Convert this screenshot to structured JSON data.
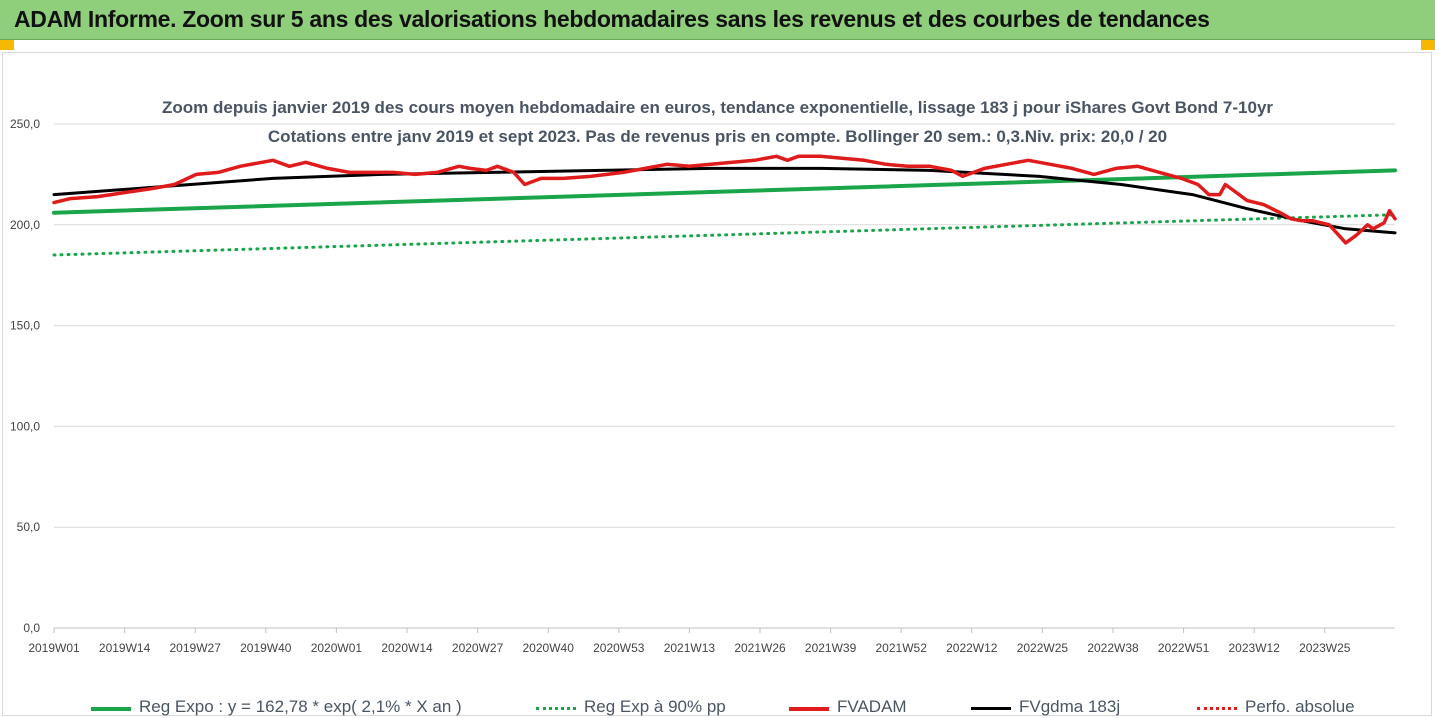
{
  "banner": {
    "title": "ADAM Informe. Zoom sur 5 ans des valorisations hebdomadaires sans les revenus et des courbes de tendances"
  },
  "chart_data": {
    "type": "line",
    "title": "Zoom depuis janvier 2019 des cours moyen hebdomadaire en euros, tendance exponentielle, lissage 183 j pour iShares Govt Bond 7-10yr",
    "subtitle": "Cotations entre janv 2019 et sept 2023. Pas de revenus pris en compte. Bollinger 20 sem.: 0,3.Niv. prix: 20,0 / 20",
    "ylim": [
      0,
      250
    ],
    "y_ticks": [
      "0,0",
      "50,0",
      "100,0",
      "150,0",
      "200,0",
      "250,0"
    ],
    "x_ticks": [
      "2019W01",
      "2019W14",
      "2019W27",
      "2019W40",
      "2020W01",
      "2020W14",
      "2020W27",
      "2020W40",
      "2020W53",
      "2021W13",
      "2021W26",
      "2021W39",
      "2021W52",
      "2022W12",
      "2022W25",
      "2022W38",
      "2022W51",
      "2023W12",
      "2023W25"
    ],
    "grid": "horizontal",
    "legend_position": "bottom",
    "series": [
      {
        "name": "Reg  Expo : y = 162,78 * exp( 2,1% *  X  an )",
        "style": "solid",
        "color": "#1aa54a",
        "points": [
          [
            0,
            206
          ],
          [
            245,
            227
          ]
        ]
      },
      {
        "name": "Reg  Exp à 90% pp",
        "style": "dotted",
        "color": "#1aa54a",
        "points": [
          [
            0,
            185
          ],
          [
            245,
            205
          ]
        ]
      },
      {
        "name": "FVADAM",
        "style": "solid",
        "color": "#e01b1b",
        "points": [
          [
            0,
            211
          ],
          [
            3,
            213
          ],
          [
            8,
            214
          ],
          [
            13,
            216
          ],
          [
            18,
            218
          ],
          [
            22,
            220
          ],
          [
            26,
            225
          ],
          [
            30,
            226
          ],
          [
            34,
            229
          ],
          [
            38,
            231
          ],
          [
            40,
            232
          ],
          [
            43,
            229
          ],
          [
            46,
            231
          ],
          [
            50,
            228
          ],
          [
            54,
            226
          ],
          [
            58,
            226
          ],
          [
            62,
            226
          ],
          [
            66,
            225
          ],
          [
            70,
            226
          ],
          [
            74,
            229
          ],
          [
            76,
            228
          ],
          [
            79,
            227
          ],
          [
            81,
            229
          ],
          [
            84,
            226
          ],
          [
            86,
            220
          ],
          [
            89,
            223
          ],
          [
            93,
            223
          ],
          [
            98,
            224
          ],
          [
            104,
            226
          ],
          [
            108,
            228
          ],
          [
            112,
            230
          ],
          [
            116,
            229
          ],
          [
            120,
            230
          ],
          [
            124,
            231
          ],
          [
            128,
            232
          ],
          [
            132,
            234
          ],
          [
            134,
            232
          ],
          [
            136,
            234
          ],
          [
            140,
            234
          ],
          [
            144,
            233
          ],
          [
            148,
            232
          ],
          [
            152,
            230
          ],
          [
            156,
            229
          ],
          [
            160,
            229
          ],
          [
            164,
            227
          ],
          [
            166,
            224
          ],
          [
            170,
            228
          ],
          [
            174,
            230
          ],
          [
            178,
            232
          ],
          [
            182,
            230
          ],
          [
            186,
            228
          ],
          [
            190,
            225
          ],
          [
            194,
            228
          ],
          [
            198,
            229
          ],
          [
            202,
            226
          ],
          [
            206,
            223
          ],
          [
            209,
            220
          ],
          [
            211,
            215
          ],
          [
            213,
            215
          ],
          [
            214,
            220
          ],
          [
            216,
            216
          ],
          [
            218,
            212
          ],
          [
            221,
            210
          ],
          [
            224,
            206
          ],
          [
            226,
            203
          ],
          [
            228,
            202
          ],
          [
            230,
            202
          ],
          [
            233,
            200
          ],
          [
            235,
            194
          ],
          [
            236,
            191
          ],
          [
            238,
            195
          ],
          [
            240,
            200
          ],
          [
            241,
            198
          ],
          [
            243,
            201
          ],
          [
            244,
            207
          ],
          [
            245,
            203
          ]
        ]
      },
      {
        "name": "FVgdma  183j",
        "style": "solid",
        "color": "#000000",
        "points": [
          [
            0,
            215
          ],
          [
            20,
            219
          ],
          [
            40,
            223
          ],
          [
            60,
            225
          ],
          [
            80,
            226
          ],
          [
            100,
            227
          ],
          [
            120,
            228
          ],
          [
            140,
            228
          ],
          [
            160,
            227
          ],
          [
            180,
            224
          ],
          [
            195,
            220
          ],
          [
            208,
            215
          ],
          [
            218,
            208
          ],
          [
            228,
            202
          ],
          [
            236,
            198
          ],
          [
            245,
            196
          ]
        ]
      },
      {
        "name": "Perfo. absolue",
        "style": "dotted",
        "color": "#e01b1b",
        "points": []
      }
    ]
  }
}
